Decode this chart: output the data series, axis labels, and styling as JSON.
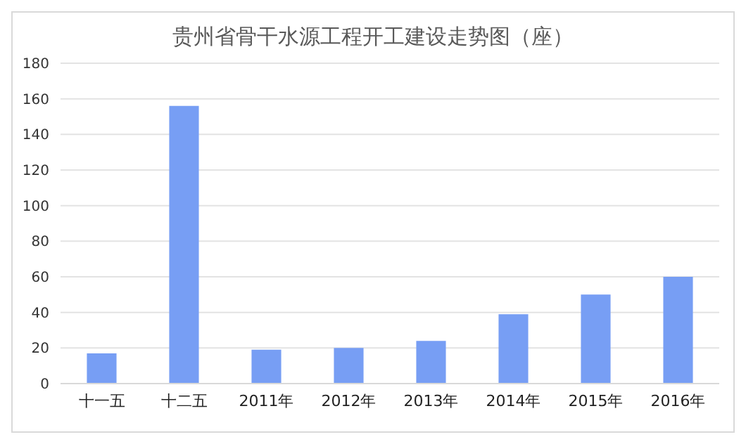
{
  "chart_data": {
    "type": "bar",
    "title": "贵州省骨干水源工程开工建设走势图（座）",
    "categories": [
      "十一五",
      "十二五",
      "2011年",
      "2012年",
      "2013年",
      "2014年",
      "2015年",
      "2016年"
    ],
    "values": [
      17,
      156,
      19,
      20,
      24,
      39,
      50,
      60
    ],
    "color": "#779ef4",
    "ylim": [
      0,
      180
    ],
    "yticks": [
      0,
      20,
      40,
      60,
      80,
      100,
      120,
      140,
      160,
      180
    ],
    "grid": "y",
    "legend": false
  }
}
